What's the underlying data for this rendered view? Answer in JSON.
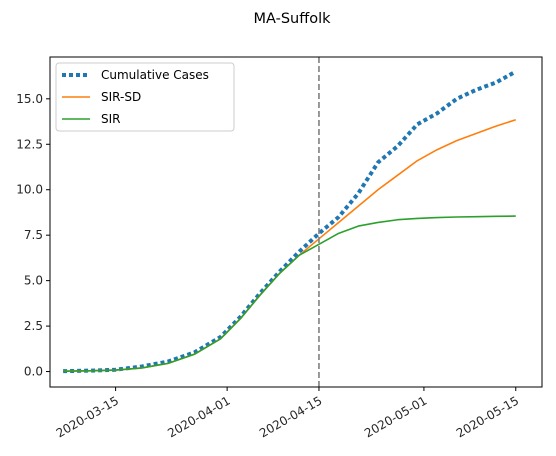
{
  "chart_data": {
    "type": "line",
    "title": "MA-Suffolk",
    "xlabel": "",
    "ylabel": "",
    "x_ticks": [
      "2020-03-15",
      "2020-04-01",
      "2020-04-15",
      "2020-05-01",
      "2020-05-15"
    ],
    "y_ticks": [
      "0.0",
      "2.5",
      "5.0",
      "7.5",
      "10.0",
      "12.5",
      "15.0"
    ],
    "xlim": [
      "2020-03-05",
      "2020-05-19"
    ],
    "ylim": [
      -0.85,
      17.3
    ],
    "grid": false,
    "legend_position": "upper-left",
    "vline": {
      "x": "2020-04-15",
      "style": "dashed",
      "color": "#808080"
    },
    "series": [
      {
        "name": "Cumulative Cases",
        "style": "dotted",
        "color": "#1f77b4",
        "x": [
          "2020-03-07",
          "2020-03-11",
          "2020-03-15",
          "2020-03-19",
          "2020-03-23",
          "2020-03-27",
          "2020-03-31",
          "2020-04-03",
          "2020-04-06",
          "2020-04-09",
          "2020-04-12",
          "2020-04-15",
          "2020-04-18",
          "2020-04-21",
          "2020-04-24",
          "2020-04-27",
          "2020-04-30",
          "2020-05-03",
          "2020-05-06",
          "2020-05-09",
          "2020-05-12",
          "2020-05-15"
        ],
        "y": [
          0.02,
          0.05,
          0.1,
          0.28,
          0.55,
          1.05,
          1.9,
          3.0,
          4.3,
          5.5,
          6.6,
          7.6,
          8.5,
          9.8,
          11.5,
          12.4,
          13.6,
          14.2,
          15.0,
          15.5,
          15.9,
          16.5
        ]
      },
      {
        "name": "SIR-SD",
        "style": "solid",
        "color": "#ff7f0e",
        "x": [
          "2020-03-07",
          "2020-03-11",
          "2020-03-15",
          "2020-03-19",
          "2020-03-23",
          "2020-03-27",
          "2020-03-31",
          "2020-04-03",
          "2020-04-06",
          "2020-04-09",
          "2020-04-12",
          "2020-04-15",
          "2020-04-18",
          "2020-04-21",
          "2020-04-24",
          "2020-04-27",
          "2020-04-30",
          "2020-05-03",
          "2020-05-06",
          "2020-05-09",
          "2020-05-12",
          "2020-05-15"
        ],
        "y": [
          0.02,
          0.04,
          0.08,
          0.2,
          0.45,
          0.95,
          1.8,
          2.9,
          4.2,
          5.4,
          6.4,
          7.3,
          8.2,
          9.1,
          10.0,
          10.8,
          11.6,
          12.2,
          12.7,
          13.1,
          13.5,
          13.85
        ]
      },
      {
        "name": "SIR",
        "style": "solid",
        "color": "#2ca02c",
        "x": [
          "2020-03-07",
          "2020-03-11",
          "2020-03-15",
          "2020-03-19",
          "2020-03-23",
          "2020-03-27",
          "2020-03-31",
          "2020-04-03",
          "2020-04-06",
          "2020-04-09",
          "2020-04-12",
          "2020-04-15",
          "2020-04-18",
          "2020-04-21",
          "2020-04-24",
          "2020-04-27",
          "2020-04-30",
          "2020-05-03",
          "2020-05-06",
          "2020-05-09",
          "2020-05-12",
          "2020-05-15"
        ],
        "y": [
          0.02,
          0.04,
          0.08,
          0.2,
          0.45,
          0.95,
          1.8,
          2.9,
          4.2,
          5.4,
          6.4,
          7.0,
          7.6,
          8.0,
          8.2,
          8.35,
          8.42,
          8.47,
          8.5,
          8.52,
          8.54,
          8.55
        ]
      }
    ]
  }
}
